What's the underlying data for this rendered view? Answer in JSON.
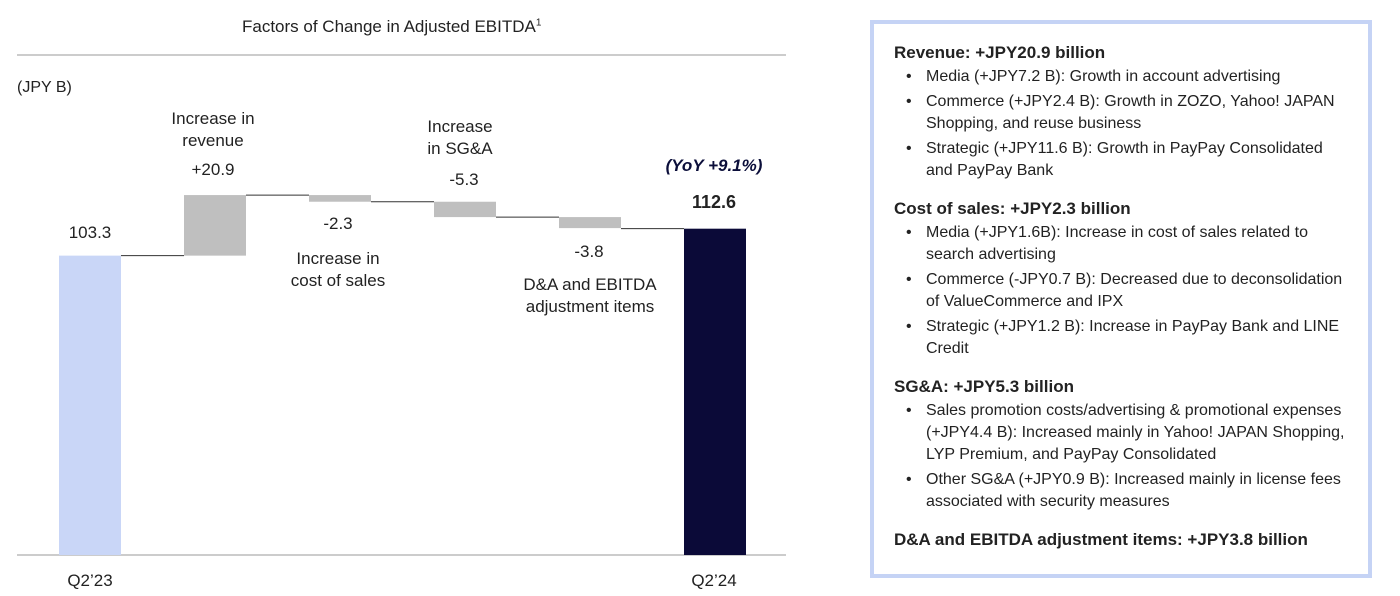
{
  "chart_data": {
    "type": "waterfall",
    "title": "Factors of Change in Adjusted EBITDA",
    "title_superscript": "1",
    "unit": "(JPY B)",
    "yoy_note": "(YoY +9.1%)",
    "colors": {
      "start": "#c9d6f7",
      "delta": "#bfbfbf",
      "end": "#0b0a38"
    },
    "ylim": [
      0,
      140
    ],
    "steps": [
      {
        "kind": "total",
        "label": "Q2’23",
        "value": 103.3,
        "value_label": "103.3"
      },
      {
        "kind": "delta",
        "label": "Increase in revenue",
        "value": 20.9,
        "value_label": "+20.9"
      },
      {
        "kind": "delta",
        "label": "Increase in cost of sales",
        "value": -2.3,
        "value_label": "-2.3"
      },
      {
        "kind": "delta",
        "label": "Increase in SG&A",
        "value": -5.3,
        "value_label": "-5.3"
      },
      {
        "kind": "delta",
        "label": "D&A and EBITDA adjustment items",
        "value": -3.8,
        "value_label": "-3.8"
      },
      {
        "kind": "total",
        "label": "Q2’24",
        "value": 112.6,
        "value_label": "112.6"
      }
    ]
  },
  "labels": {
    "step1_line1": "Increase in",
    "step1_line2": "revenue",
    "step2_line1": "Increase in",
    "step2_line2": "cost of sales",
    "step3_line1": "Increase",
    "step3_line2": "in SG&A",
    "step4_line1": "D&A and EBITDA",
    "step4_line2": "adjustment items"
  },
  "panel": {
    "sections": [
      {
        "heading": "Revenue: +JPY20.9 billion",
        "bullets": [
          "Media (+JPY7.2 B): Growth in account advertising",
          "Commerce (+JPY2.4 B): Growth in ZOZO, Yahoo! JAPAN Shopping, and reuse business",
          "Strategic (+JPY11.6 B): Growth in PayPay Consolidated and PayPay Bank"
        ]
      },
      {
        "heading": "Cost of sales: +JPY2.3 billion",
        "bullets": [
          "Media (+JPY1.6B): Increase in cost of sales related to search advertising",
          "Commerce (-JPY0.7 B): Decreased due to deconsolidation of ValueCommerce and IPX",
          "Strategic (+JPY1.2 B): Increase in PayPay Bank and LINE Credit"
        ]
      },
      {
        "heading": "SG&A: +JPY5.3 billion",
        "bullets": [
          "Sales promotion costs/advertising & promotional expenses (+JPY4.4 B): Increased mainly in Yahoo! JAPAN Shopping, LYP Premium, and PayPay Consolidated",
          "Other SG&A (+JPY0.9 B): Increased mainly in license fees associated with security measures"
        ]
      },
      {
        "heading": "D&A and EBITDA adjustment items: +JPY3.8 billion",
        "bullets": []
      }
    ]
  }
}
